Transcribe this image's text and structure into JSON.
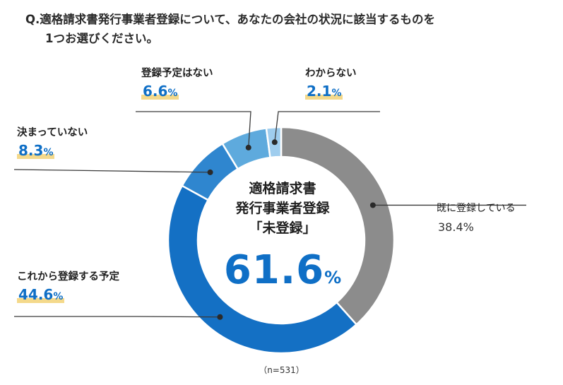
{
  "question": {
    "line1": "Q.適格請求書発行事業者登録について、あなたの会社の状況に該当するものを",
    "line2": "1つお選びください。"
  },
  "center": {
    "line1": "適格請求書",
    "line2": "発行事業者登録",
    "line3": "「未登録」",
    "value": "61.6",
    "unit": "%"
  },
  "note": "（n=531）",
  "colors": {
    "already": "#8c8c8c",
    "planned": "#1470c4",
    "undecided": "#2f86cf",
    "no_plan": "#5eaadd",
    "unknown": "#9fcdee",
    "highlight": "#f4d98b",
    "value_text": "#0f6fc6"
  },
  "labels": {
    "already": {
      "name": "既に登録している",
      "value": "38.4",
      "unit": "%"
    },
    "planned": {
      "name": "これから登録する予定",
      "value": "44.6",
      "unit": "%"
    },
    "undecided": {
      "name": "決まっていない",
      "value": "8.3",
      "unit": "%"
    },
    "no_plan": {
      "name": "登録予定はない",
      "value": "6.6",
      "unit": "%"
    },
    "unknown": {
      "name": "わからない",
      "value": "2.1",
      "unit": "%"
    }
  },
  "chart_data": {
    "type": "pie",
    "donut": true,
    "start": "top",
    "direction": "clockwise",
    "categories": [
      "既に登録している",
      "これから登録する予定",
      "決まっていない",
      "登録予定はない",
      "わからない"
    ],
    "values": [
      38.4,
      44.6,
      8.3,
      6.6,
      2.1
    ],
    "unit": "%",
    "n": 531
  }
}
